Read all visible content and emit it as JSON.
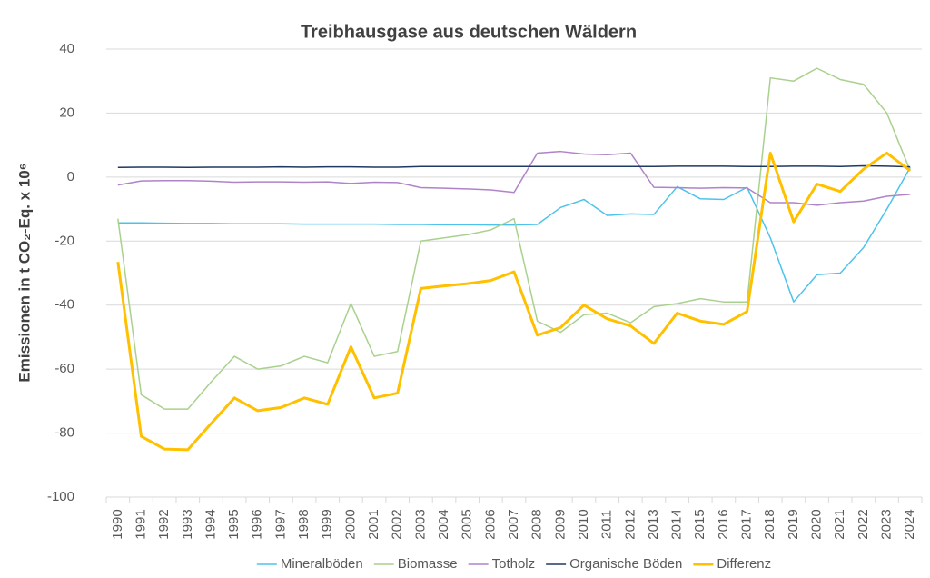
{
  "chart_data": {
    "type": "line",
    "title": "Treibhausgase aus deutschen Wäldern",
    "y_label": "Emissionen in t CO₂-Eq. x 10⁶",
    "categories": [
      "1990",
      "1991",
      "1992",
      "1993",
      "1994",
      "1995",
      "1996",
      "1997",
      "1998",
      "1999",
      "2000",
      "2001",
      "2002",
      "2003",
      "2004",
      "2005",
      "2006",
      "2007",
      "2008",
      "2009",
      "2010",
      "2011",
      "2012",
      "2013",
      "2014",
      "2015",
      "2016",
      "2017",
      "2018",
      "2019",
      "2020",
      "2021",
      "2022",
      "2023",
      "2024"
    ],
    "ylim": [
      -100,
      40
    ],
    "yticks": [
      -100,
      -80,
      -60,
      -40,
      -20,
      0,
      20,
      40
    ],
    "grid": true,
    "legend": "bottom",
    "series": [
      {
        "name": "Mineralböden",
        "color": "#4dc3ec",
        "width": 1.5,
        "values": [
          -14.3,
          -14.3,
          -14.4,
          -14.5,
          -14.5,
          -14.6,
          -14.6,
          -14.6,
          -14.7,
          -14.7,
          -14.7,
          -14.7,
          -14.8,
          -14.8,
          -14.9,
          -14.9,
          -15,
          -15,
          -14.8,
          -9.5,
          -7,
          -12,
          -11.5,
          -11.7,
          -3,
          -6.8,
          -7,
          -3.2,
          -19,
          -39,
          -30.5,
          -30,
          -22,
          -10,
          3
        ]
      },
      {
        "name": "Biomasse",
        "color": "#a9d18e",
        "width": 1.5,
        "values": [
          -13,
          -68,
          -72.5,
          -72.5,
          -64,
          -56,
          -60,
          -59,
          -56,
          -58,
          -39.5,
          -56,
          -54.5,
          -20,
          -19,
          -18,
          -16.5,
          -13,
          -45,
          -48.5,
          -43,
          -42.5,
          -45.5,
          -40.5,
          -39.5,
          -38,
          -39,
          -39,
          31,
          30,
          34,
          30.5,
          29,
          20,
          2
        ]
      },
      {
        "name": "Totholz",
        "color": "#b083c9",
        "width": 1.5,
        "values": [
          -2.5,
          -1.2,
          -1.1,
          -1.1,
          -1.3,
          -1.6,
          -1.5,
          -1.5,
          -1.6,
          -1.5,
          -2,
          -1.6,
          -1.7,
          -3.3,
          -3.5,
          -3.7,
          -4,
          -4.8,
          7.5,
          8,
          7.2,
          7,
          7.5,
          -3.2,
          -3.3,
          -3.5,
          -3.3,
          -3.4,
          -8,
          -8,
          -8.8,
          -8,
          -7.5,
          -6,
          -5.4
        ]
      },
      {
        "name": "Organische Böden",
        "color": "#203864",
        "width": 1.5,
        "values": [
          3,
          3.1,
          3.1,
          3,
          3.1,
          3.1,
          3.1,
          3.2,
          3.1,
          3.2,
          3.2,
          3.1,
          3.1,
          3.3,
          3.3,
          3.3,
          3.3,
          3.3,
          3.3,
          3.3,
          3.3,
          3.3,
          3.3,
          3.3,
          3.4,
          3.4,
          3.4,
          3.3,
          3.3,
          3.4,
          3.4,
          3.3,
          3.5,
          3.4,
          3.2
        ]
      },
      {
        "name": "Differenz",
        "color": "#ffc000",
        "width": 3,
        "values": [
          -26.5,
          -81,
          -85,
          -85.2,
          -77,
          -69,
          -73,
          -72,
          -69,
          -71,
          -53,
          -69,
          -67.5,
          -34.8,
          -34,
          -33.3,
          -32.3,
          -29.6,
          -49.4,
          -47,
          -40,
          -44.3,
          -46.5,
          -52,
          -42.5,
          -45,
          -46,
          -42,
          7.5,
          -14,
          -2.2,
          -4.5,
          2.5,
          7.5,
          2
        ]
      }
    ]
  }
}
